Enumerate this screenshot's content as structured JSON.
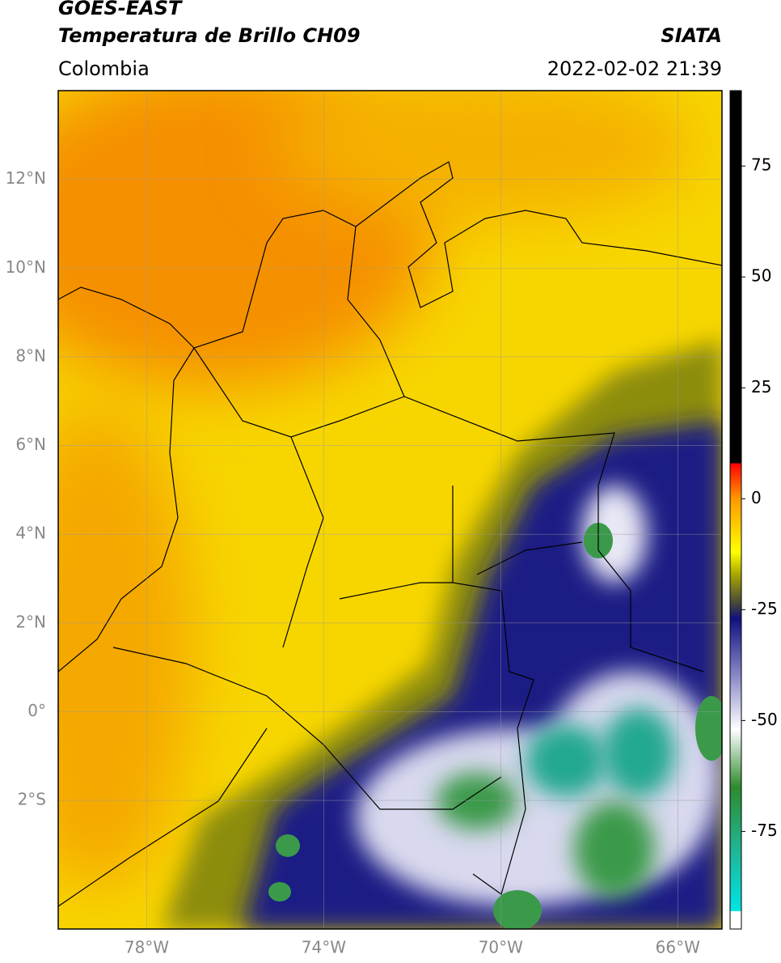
{
  "header": {
    "satellite": "GOES-EAST",
    "product": "Temperatura de Brillo CH09",
    "region": "Colombia",
    "source": "SIATA",
    "datetime": "2022-02-02 21:39"
  },
  "map": {
    "lonlim": [
      -80,
      -65
    ],
    "latlim": [
      -4.9,
      14
    ],
    "lonticks": [
      {
        "value": -78,
        "label": "78°W"
      },
      {
        "value": -74,
        "label": "74°W"
      },
      {
        "value": -70,
        "label": "70°W"
      },
      {
        "value": -66,
        "label": "66°W"
      }
    ],
    "latticks": [
      {
        "value": 12,
        "label": "12°N"
      },
      {
        "value": 10,
        "label": "10°N"
      },
      {
        "value": 8,
        "label": "8°N"
      },
      {
        "value": 6,
        "label": "6°N"
      },
      {
        "value": 4,
        "label": "4°N"
      },
      {
        "value": 2,
        "label": "2°N"
      },
      {
        "value": 0,
        "label": "0°"
      },
      {
        "value": -2,
        "label": "2°S"
      }
    ]
  },
  "colorbar": {
    "lim": [
      -97,
      92
    ],
    "ticks": [
      75,
      50,
      25,
      0,
      -25,
      -50,
      -75
    ],
    "colormap": [
      {
        "value": -97,
        "color": "#ffffff"
      },
      {
        "value": -93,
        "color": "#ffffff"
      },
      {
        "value": -93,
        "color": "#00e5e5"
      },
      {
        "value": -80,
        "color": "#1fb89a"
      },
      {
        "value": -65,
        "color": "#2e8b2e"
      },
      {
        "value": -52,
        "color": "#ffffff"
      },
      {
        "value": -40,
        "color": "#8a8ac8"
      },
      {
        "value": -27,
        "color": "#101080"
      },
      {
        "value": -24,
        "color": "#404040"
      },
      {
        "value": -17,
        "color": "#a8a800"
      },
      {
        "value": -12,
        "color": "#ffff00"
      },
      {
        "value": 0,
        "color": "#ff9900"
      },
      {
        "value": 8,
        "color": "#ff0000"
      },
      {
        "value": 8,
        "color": "#000000"
      },
      {
        "value": 92,
        "color": "#000000"
      }
    ]
  }
}
